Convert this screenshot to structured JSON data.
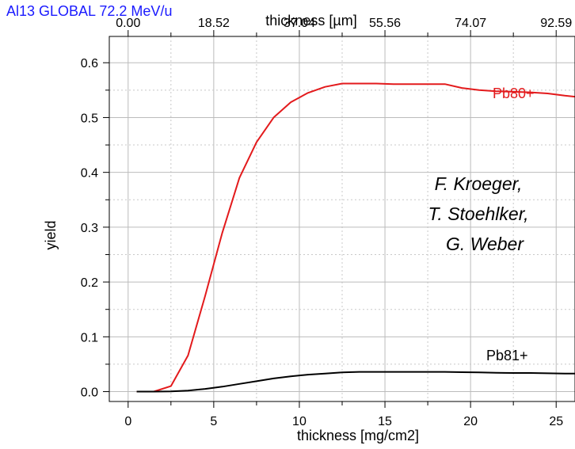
{
  "corner_label": "Al13 GLOBAL 72.2 MeV/u",
  "chart_data": {
    "type": "line",
    "title": "",
    "xlabel": "thickness [mg/cm2]",
    "x2label": "thickness [µm]",
    "ylabel": "yield",
    "xlim": [
      -1.1,
      26.1
    ],
    "ylim": [
      -0.018,
      0.648
    ],
    "x_ticks": [
      "0",
      "5",
      "10",
      "15",
      "20",
      "25"
    ],
    "x2_ticks": [
      "0.00",
      "18.52",
      "37.04",
      "55.56",
      "74.07",
      "92.59"
    ],
    "y_ticks": [
      "0.0",
      "0.1",
      "0.2",
      "0.3",
      "0.4",
      "0.5",
      "0.6"
    ],
    "grid": true,
    "series": [
      {
        "name": "Pb80+",
        "color": "#e31a1c",
        "x": [
          0.5,
          1.5,
          2.5,
          3.5,
          4.5,
          5.5,
          6.5,
          7.5,
          8.5,
          9.5,
          10.5,
          11.5,
          12.5,
          13.5,
          14.5,
          15.5,
          16.5,
          17.5,
          18.5,
          19.5,
          20.5,
          21.5,
          22.5,
          23.5,
          24.5,
          25.5,
          26.1
        ],
        "y": [
          0.0,
          0.0,
          0.01,
          0.066,
          0.175,
          0.29,
          0.39,
          0.455,
          0.5,
          0.528,
          0.545,
          0.556,
          0.562,
          0.562,
          0.562,
          0.561,
          0.561,
          0.561,
          0.561,
          0.554,
          0.55,
          0.548,
          0.547,
          0.546,
          0.544,
          0.54,
          0.538
        ]
      },
      {
        "name": "Pb81+",
        "color": "#000000",
        "x": [
          0.5,
          1.5,
          2.5,
          3.5,
          4.5,
          5.5,
          6.5,
          7.5,
          8.5,
          9.5,
          10.5,
          11.5,
          12.5,
          13.5,
          14.5,
          15.5,
          16.5,
          17.5,
          18.5,
          19.5,
          20.5,
          21.5,
          22.5,
          23.5,
          24.5,
          25.5,
          26.1
        ],
        "y": [
          0.0,
          0.0,
          0.0005,
          0.002,
          0.005,
          0.009,
          0.014,
          0.019,
          0.024,
          0.028,
          0.031,
          0.033,
          0.035,
          0.036,
          0.036,
          0.036,
          0.036,
          0.036,
          0.036,
          0.0355,
          0.035,
          0.0345,
          0.034,
          0.034,
          0.0335,
          0.033,
          0.033
        ]
      }
    ],
    "annotations": [
      "F. Kroeger,",
      "T. Stoehlker,",
      "G. Weber"
    ]
  }
}
